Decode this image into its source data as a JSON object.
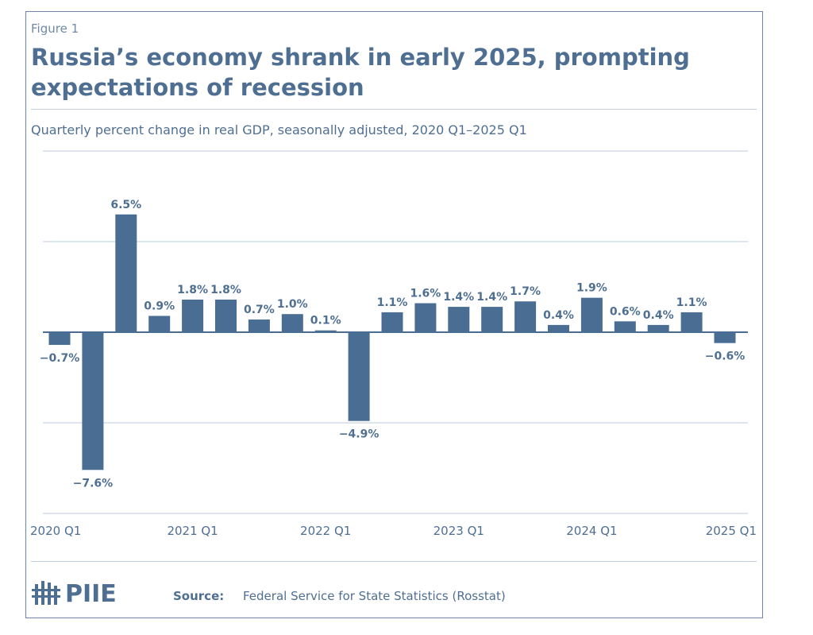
{
  "figure_label": "Figure 1",
  "title": "Russia’s economy shrank in early 2025, prompting expectations of recession",
  "subtitle": "Quarterly percent change in real GDP, seasonally adjusted, 2020 Q1–2025 Q1",
  "source_label": "Source:",
  "source_text": "Federal Service for State Statistics (Rosstat)",
  "logo_text": "PIIE",
  "colors": {
    "bar": "#4a6d94",
    "text": "#4f6f92",
    "grid": "#c9d5e3",
    "axis": "#4a6d94"
  },
  "chart_data": {
    "type": "bar",
    "categories": [
      "2020 Q1",
      "2020 Q2",
      "2020 Q3",
      "2020 Q4",
      "2021 Q1",
      "2021 Q2",
      "2021 Q3",
      "2021 Q4",
      "2022 Q1",
      "2022 Q2",
      "2022 Q3",
      "2022 Q4",
      "2023 Q1",
      "2023 Q2",
      "2023 Q3",
      "2023 Q4",
      "2024 Q1",
      "2024 Q2",
      "2024 Q3",
      "2024 Q4",
      "2025 Q1"
    ],
    "values": [
      -0.7,
      -7.6,
      6.5,
      0.9,
      1.8,
      1.8,
      0.7,
      1.0,
      0.1,
      -4.9,
      1.1,
      1.6,
      1.4,
      1.4,
      1.7,
      0.4,
      1.9,
      0.6,
      0.4,
      1.1,
      -0.6
    ],
    "data_labels": [
      "−0.7%",
      "−7.6%",
      "6.5%",
      "0.9%",
      "1.8%",
      "1.8%",
      "0.7%",
      "1.0%",
      "0.1%",
      "−4.9%",
      "1.1%",
      "1.6%",
      "1.4%",
      "1.4%",
      "1.7%",
      "0.4%",
      "1.9%",
      "0.6%",
      "0.4%",
      "1.1%",
      "−0.6%"
    ],
    "x_tick_labels": [
      "2020 Q1",
      "2021 Q1",
      "2022 Q1",
      "2023 Q1",
      "2024 Q1",
      "2025 Q1"
    ],
    "ylim": [
      -10,
      10
    ],
    "y_gridlines": [
      -10,
      -5,
      0,
      5,
      10
    ],
    "grid": true,
    "legend": "none",
    "xlabel": "",
    "ylabel": ""
  }
}
